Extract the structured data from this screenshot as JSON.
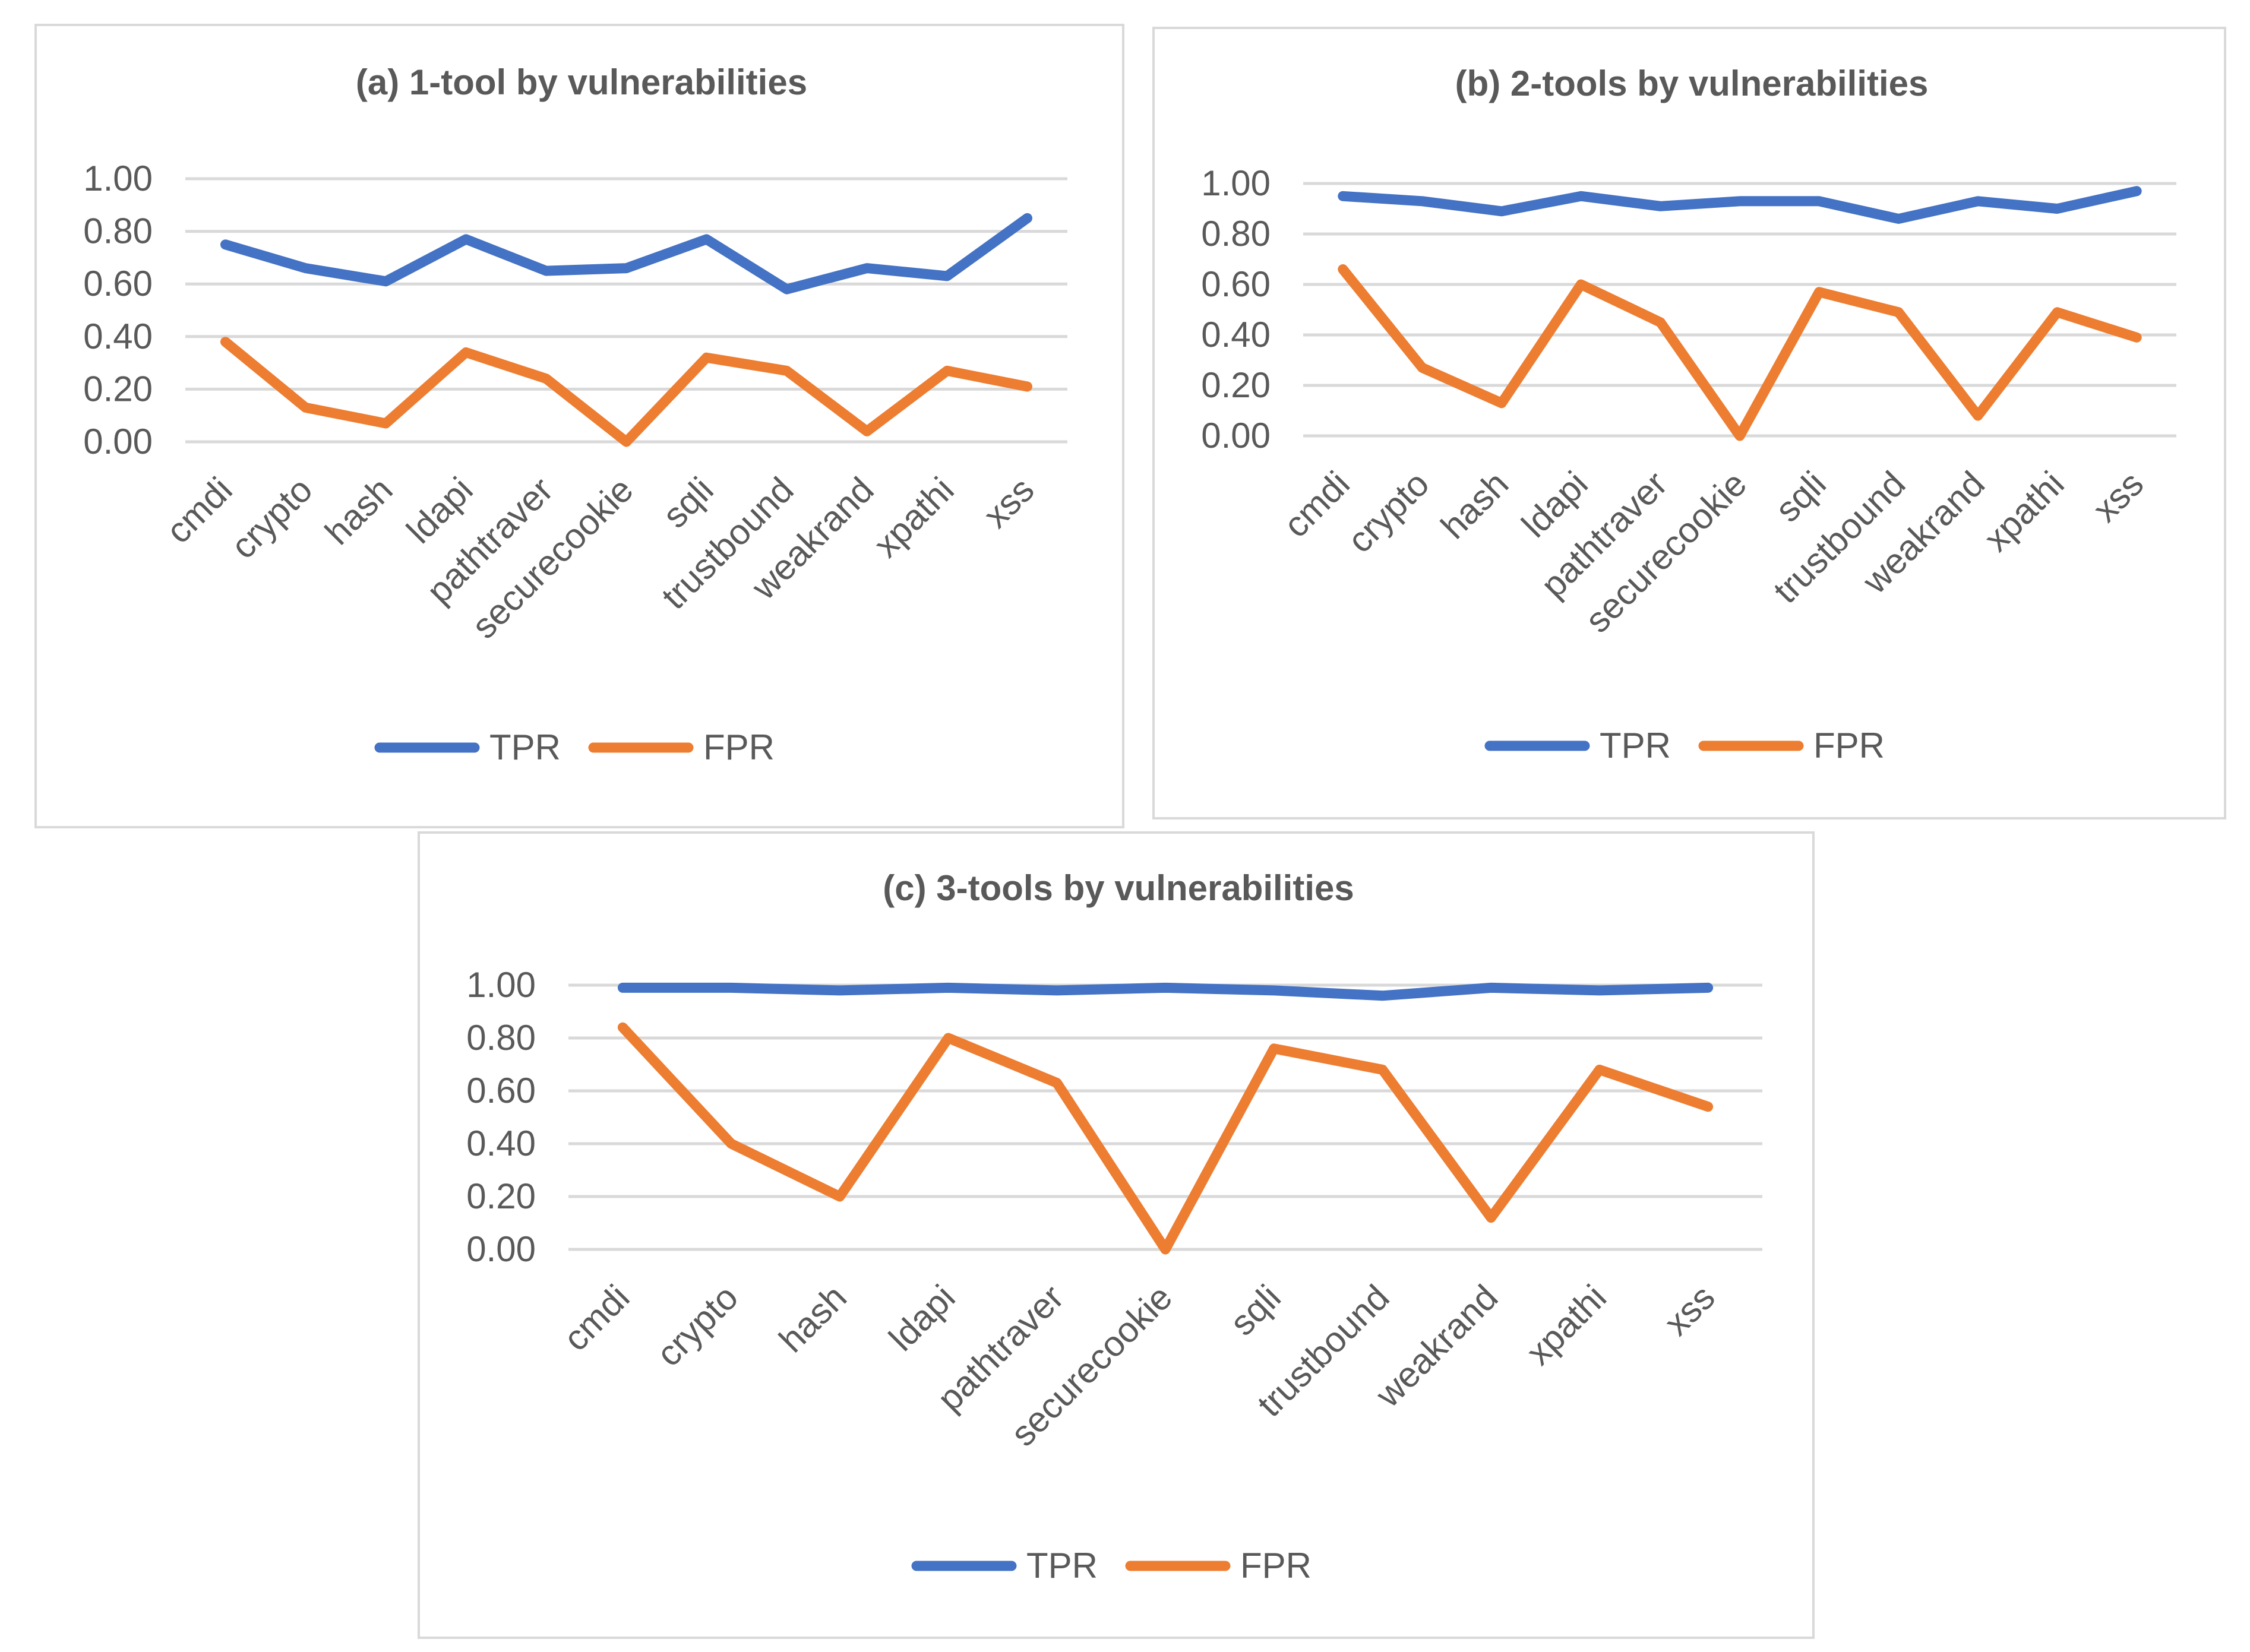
{
  "chart_data": [
    {
      "id": "a",
      "type": "line",
      "title": "(a) 1-tool by vulnerabilities",
      "categories": [
        "cmdi",
        "crypto",
        "hash",
        "ldapi",
        "pathtraver",
        "securecookie",
        "sqli",
        "trustbound",
        "weakrand",
        "xpathi",
        "xss"
      ],
      "series": [
        {
          "name": "TPR",
          "color": "#4472C4",
          "values": [
            0.75,
            0.66,
            0.61,
            0.77,
            0.65,
            0.66,
            0.77,
            0.58,
            0.66,
            0.63,
            0.85
          ]
        },
        {
          "name": "FPR",
          "color": "#ED7D31",
          "values": [
            0.38,
            0.13,
            0.07,
            0.34,
            0.24,
            0.0,
            0.32,
            0.27,
            0.04,
            0.27,
            0.21
          ]
        }
      ],
      "ylim": [
        0,
        1
      ],
      "y_ticks": [
        "0.00",
        "0.20",
        "0.40",
        "0.60",
        "0.80",
        "1.00"
      ],
      "xlabel": "",
      "ylabel": "",
      "grid": true,
      "legend": "bottom"
    },
    {
      "id": "b",
      "type": "line",
      "title": "(b) 2-tools by vulnerabilities",
      "categories": [
        "cmdi",
        "crypto",
        "hash",
        "ldapi",
        "pathtraver",
        "securecookie",
        "sqli",
        "trustbound",
        "weakrand",
        "xpathi",
        "xss"
      ],
      "series": [
        {
          "name": "TPR",
          "color": "#4472C4",
          "values": [
            0.95,
            0.93,
            0.89,
            0.95,
            0.91,
            0.93,
            0.93,
            0.86,
            0.93,
            0.9,
            0.97
          ]
        },
        {
          "name": "FPR",
          "color": "#ED7D31",
          "values": [
            0.66,
            0.27,
            0.13,
            0.6,
            0.45,
            0.0,
            0.57,
            0.49,
            0.08,
            0.49,
            0.39
          ]
        }
      ],
      "ylim": [
        0,
        1
      ],
      "y_ticks": [
        "0.00",
        "0.20",
        "0.40",
        "0.60",
        "0.80",
        "1.00"
      ],
      "xlabel": "",
      "ylabel": "",
      "grid": true,
      "legend": "bottom"
    },
    {
      "id": "c",
      "type": "line",
      "title": "(c) 3-tools by vulnerabilities",
      "categories": [
        "cmdi",
        "crypto",
        "hash",
        "ldapi",
        "pathtraver",
        "securecookie",
        "sqli",
        "trustbound",
        "weakrand",
        "xpathi",
        "xss"
      ],
      "series": [
        {
          "name": "TPR",
          "color": "#4472C4",
          "values": [
            0.99,
            0.99,
            0.98,
            0.99,
            0.98,
            0.99,
            0.98,
            0.96,
            0.99,
            0.98,
            0.99
          ]
        },
        {
          "name": "FPR",
          "color": "#ED7D31",
          "values": [
            0.84,
            0.4,
            0.2,
            0.8,
            0.63,
            0.0,
            0.76,
            0.68,
            0.12,
            0.68,
            0.54
          ]
        }
      ],
      "ylim": [
        0,
        1
      ],
      "y_ticks": [
        "0.00",
        "0.20",
        "0.40",
        "0.60",
        "0.80",
        "1.00"
      ],
      "xlabel": "",
      "ylabel": "",
      "grid": true,
      "legend": "bottom"
    }
  ]
}
